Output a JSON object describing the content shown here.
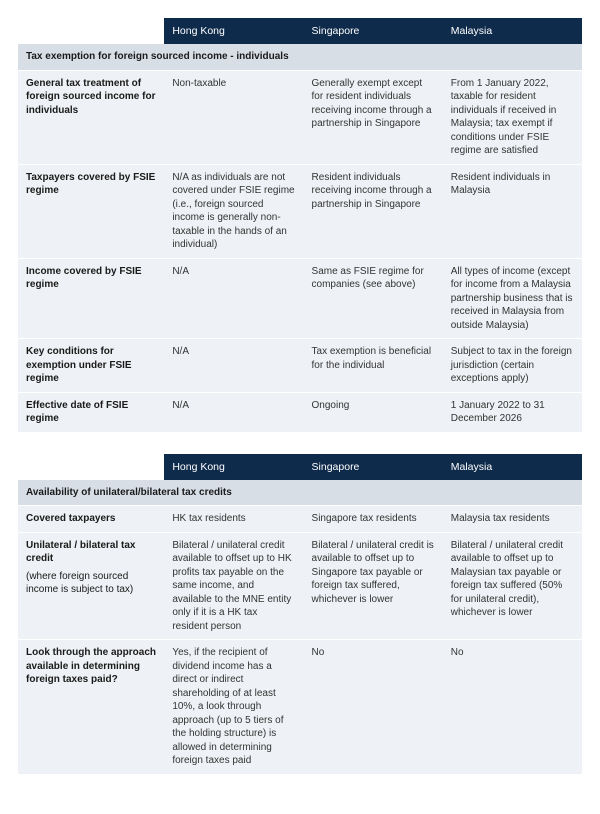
{
  "colors": {
    "header_bg": "#0f2b4c",
    "header_text": "#ffffff",
    "section_bg": "#d7dee6",
    "row_bg": "#eef1f5",
    "text": "#1a1a1a",
    "cell_text": "#333333",
    "page_bg": "#ffffff"
  },
  "typography": {
    "base_font_size_pt": 7.5,
    "header_font_size_pt": 8,
    "font_family": "Arial"
  },
  "table1": {
    "headers": [
      "",
      "Hong Kong",
      "Singapore",
      "Malaysia"
    ],
    "section_title": "Tax exemption for foreign sourced income - individuals",
    "rows": [
      {
        "label": "General tax treatment of foreign sourced income for individuals",
        "hk": "Non-taxable",
        "sg": "Generally exempt except for resident individuals receiving income through a partnership in Singapore",
        "my": "From 1 January 2022, taxable for resident individuals if received in Malaysia; tax exempt if conditions under FSIE regime are satisfied"
      },
      {
        "label": "Taxpayers covered by FSIE regime",
        "hk": "N/A as individuals are not covered under FSIE regime (i.e., foreign sourced income is generally non-taxable in the hands of an individual)",
        "sg": "Resident individuals receiving income through a partnership in Singapore",
        "my": "Resident individuals in Malaysia"
      },
      {
        "label": "Income covered by FSIE regime",
        "hk": "N/A",
        "sg": "Same as FSIE regime for companies (see above)",
        "my": "All types of income (except for income from a Malaysia partnership business that is received in Malaysia from outside Malaysia)"
      },
      {
        "label": "Key conditions for exemption under FSIE regime",
        "hk": "N/A",
        "sg": "Tax exemption is beneficial for the individual",
        "my": "Subject to tax in the foreign jurisdiction (certain exceptions apply)"
      },
      {
        "label": "Effective date of FSIE regime",
        "hk": "N/A",
        "sg": "Ongoing",
        "my": "1 January 2022 to 31 December 2026"
      }
    ]
  },
  "table2": {
    "headers": [
      "",
      "Hong Kong",
      "Singapore",
      "Malaysia"
    ],
    "section_title": "Availability of unilateral/bilateral tax credits",
    "rows": [
      {
        "label": "Covered taxpayers",
        "hk": "HK tax residents",
        "sg": "Singapore tax residents",
        "my": "Malaysia tax residents"
      },
      {
        "label": "Unilateral / bilateral tax credit",
        "sublabel": "(where foreign sourced income is subject to tax)",
        "hk": "Bilateral / unilateral credit available to offset up to HK profits tax payable on the same income, and available to the MNE entity only if it is a HK tax resident person",
        "sg": "Bilateral / unilateral credit is available to offset up to Singapore tax payable or foreign tax suffered, whichever is lower",
        "my": "Bilateral / unilateral credit available to offset up to Malaysian tax payable or foreign tax suffered (50% for unilateral credit), whichever is lower"
      },
      {
        "label": "Look through the approach available in determining foreign taxes paid?",
        "hk": "Yes, if the recipient of dividend income has a direct or indirect shareholding of at least 10%, a look through approach (up to 5 tiers of the holding structure) is allowed in determining foreign taxes paid",
        "sg": "No",
        "my": "No"
      }
    ]
  }
}
